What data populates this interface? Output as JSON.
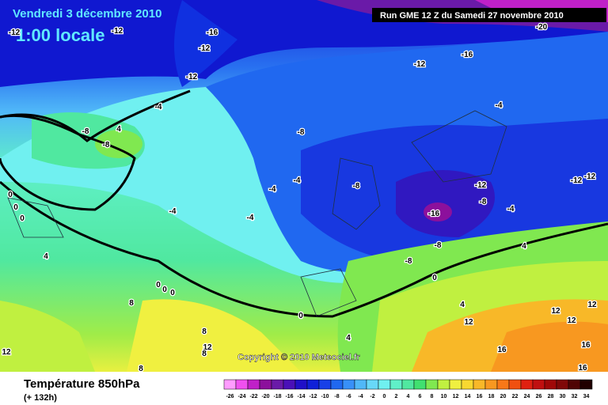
{
  "header": {
    "date": "Vendredi 3 décembre 2010",
    "time": "1:00 locale",
    "run": "Run GME 12 Z du Samedi 27 novembre 2010"
  },
  "footer": {
    "variable": "Température 850hPa",
    "lead": "(+ 132h)",
    "copyright": "Copyright © 2010 Meteociel.fr"
  },
  "legend": {
    "ticks": [
      -26,
      -24,
      -22,
      -20,
      -18,
      -16,
      -14,
      -12,
      -10,
      -8,
      -6,
      -4,
      -2,
      0,
      2,
      4,
      6,
      8,
      10,
      12,
      14,
      16,
      18,
      20,
      22,
      24,
      26,
      28,
      30,
      32,
      34
    ],
    "colors": [
      "#ff9cff",
      "#f050f0",
      "#c020c8",
      "#8c109c",
      "#6a1aa8",
      "#4a10b8",
      "#2010c8",
      "#1020d8",
      "#1840e8",
      "#2068f0",
      "#3890f8",
      "#50b8f8",
      "#68d8f8",
      "#70f0f0",
      "#60f0c8",
      "#50e8a0",
      "#40e070",
      "#80e850",
      "#c0f040",
      "#f0f040",
      "#f8d830",
      "#f8b828",
      "#f89820",
      "#f87818",
      "#f05010",
      "#e02010",
      "#c01010",
      "#a00808",
      "#800808",
      "#500404",
      "#200000"
    ]
  },
  "contour_labels": [
    -12,
    -12,
    -16,
    -12,
    -12,
    -20,
    -16,
    -12,
    -8,
    -8,
    -4,
    -4,
    4,
    -8,
    -8,
    -4,
    -4,
    -4,
    -4,
    -12,
    -8,
    -16,
    -4,
    -12,
    -12,
    -8,
    -8,
    4,
    0,
    0,
    0,
    0,
    0,
    4,
    0,
    0,
    0,
    8,
    8,
    12,
    12,
    4,
    8,
    12,
    16,
    16,
    16,
    12,
    12,
    12,
    8,
    4
  ]
}
